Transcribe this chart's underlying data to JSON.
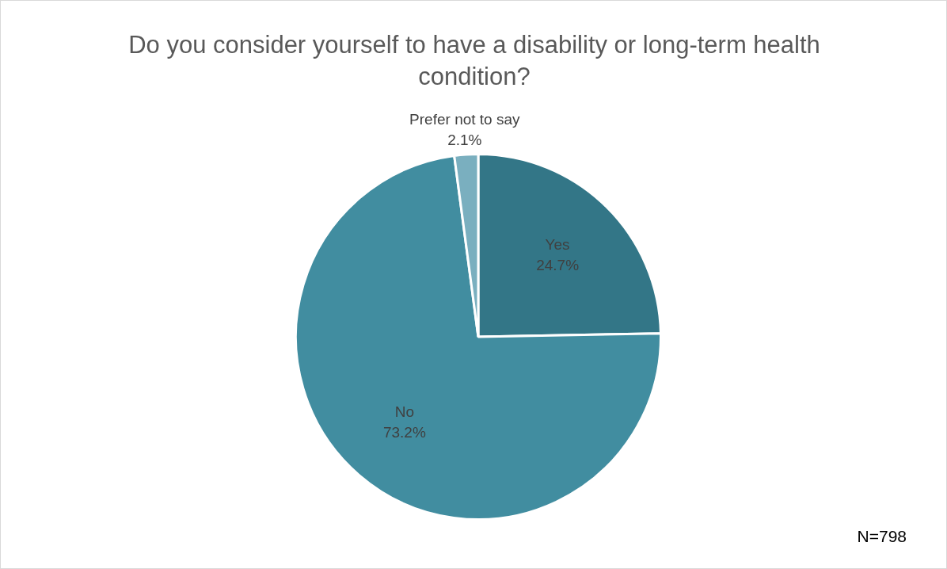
{
  "chart_data": {
    "type": "pie",
    "title": "Do you consider yourself to have a disability or long-term health condition?",
    "categories": [
      "Yes",
      "No",
      "Prefer not to say"
    ],
    "values": [
      24.7,
      73.2,
      2.1
    ],
    "value_labels": [
      "24.7%",
      "73.2%",
      "2.1%"
    ],
    "colors": [
      "#337687",
      "#418da0",
      "#7aafbf"
    ],
    "legend": false,
    "annotations": [
      "N=798"
    ]
  }
}
